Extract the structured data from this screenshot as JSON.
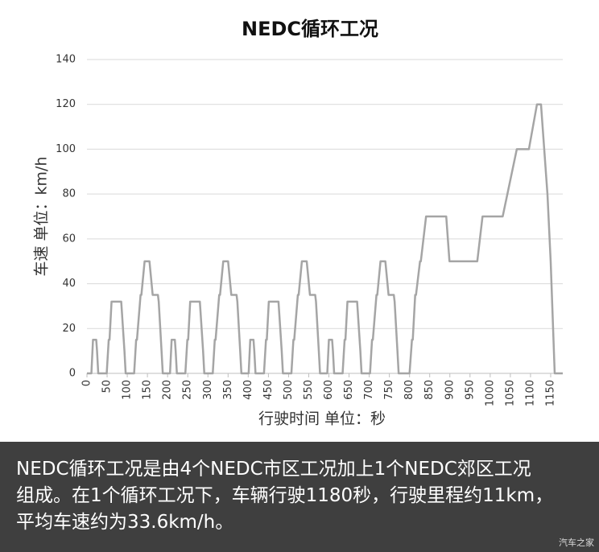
{
  "chart_data": {
    "type": "line",
    "title": "NEDC循环工况",
    "x_label": "行驶时间 单位：秒",
    "y_label": "车速 单位：km/h",
    "x": [
      0,
      11,
      15,
      23,
      25,
      28,
      49,
      54,
      56,
      61,
      85,
      93,
      96,
      117,
      122,
      124,
      133,
      135,
      143,
      155,
      163,
      176,
      178,
      185,
      188,
      195,
      206,
      210,
      218,
      220,
      223,
      244,
      249,
      251,
      256,
      280,
      288,
      291,
      312,
      317,
      319,
      328,
      330,
      338,
      350,
      358,
      371,
      373,
      380,
      383,
      390,
      401,
      405,
      413,
      415,
      418,
      439,
      444,
      446,
      451,
      475,
      483,
      486,
      507,
      512,
      514,
      523,
      525,
      533,
      545,
      553,
      566,
      568,
      575,
      578,
      585,
      596,
      600,
      608,
      610,
      613,
      634,
      639,
      641,
      646,
      670,
      678,
      681,
      702,
      707,
      709,
      718,
      720,
      728,
      740,
      748,
      761,
      763,
      770,
      773,
      780,
      800,
      806,
      808,
      814,
      816,
      826,
      828,
      841,
      891,
      899,
      968,
      981,
      1031,
      1066,
      1096,
      1116,
      1126,
      1142,
      1150,
      1160,
      1180
    ],
    "values": [
      0,
      0,
      15,
      15,
      10,
      0,
      0,
      15,
      15,
      32,
      32,
      10,
      0,
      0,
      15,
      15,
      35,
      35,
      50,
      50,
      35,
      35,
      32,
      10,
      0,
      0,
      0,
      15,
      15,
      10,
      0,
      0,
      15,
      15,
      32,
      32,
      10,
      0,
      0,
      15,
      15,
      35,
      35,
      50,
      50,
      35,
      35,
      32,
      10,
      0,
      0,
      0,
      15,
      15,
      10,
      0,
      0,
      15,
      15,
      32,
      32,
      10,
      0,
      0,
      15,
      15,
      35,
      35,
      50,
      50,
      35,
      35,
      32,
      10,
      0,
      0,
      0,
      15,
      15,
      10,
      0,
      0,
      15,
      15,
      32,
      32,
      10,
      0,
      0,
      15,
      15,
      35,
      35,
      50,
      50,
      35,
      35,
      32,
      10,
      0,
      0,
      0,
      15,
      15,
      35,
      35,
      50,
      50,
      70,
      70,
      50,
      50,
      70,
      70,
      100,
      100,
      120,
      120,
      80,
      50,
      0,
      0
    ],
    "color": "#a5a5a5",
    "xlim": [
      0,
      1180
    ],
    "xticks": [
      0,
      50,
      100,
      150,
      200,
      250,
      300,
      350,
      400,
      450,
      500,
      550,
      600,
      650,
      700,
      750,
      800,
      850,
      900,
      950,
      1000,
      1050,
      1100,
      1150
    ],
    "ylim": [
      0,
      140
    ],
    "yticks": [
      0,
      20,
      40,
      60,
      80,
      100,
      120,
      140
    ],
    "grid": true
  },
  "caption": [
    "NEDC循环工况是由4个NEDC市区工况加上1个NEDC郊区工况",
    "组成。在1个循环工况下，车辆行驶1180秒，行驶里程约11km，",
    "平均车速约为33.6km/h。"
  ],
  "watermark": "汽车之家"
}
